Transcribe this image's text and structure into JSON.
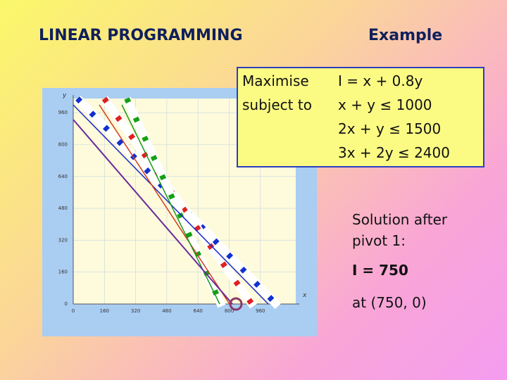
{
  "header": {
    "title": "LINEAR PROGRAMMING",
    "subtitle": "Example"
  },
  "problem": {
    "objective_keyword": "Maximise",
    "objective": "I = x + 0.8y",
    "constraint_keyword": "subject to",
    "constraints": [
      "x + y ≤ 1000",
      "2x + y ≤ 1500",
      "3x + 2y ≤ 2400"
    ]
  },
  "graph": {
    "x_label": "x",
    "y_label": "y",
    "x_ticks": [
      "0",
      "160",
      "320",
      "480",
      "640",
      "800",
      "960"
    ],
    "y_ticks": [
      "0",
      "160",
      "320",
      "480",
      "640",
      "800",
      "960"
    ]
  },
  "solution": {
    "heading": [
      "Solution after",
      "pivot 1:"
    ],
    "value": "I = 750",
    "point": "at (750, 0)"
  }
}
